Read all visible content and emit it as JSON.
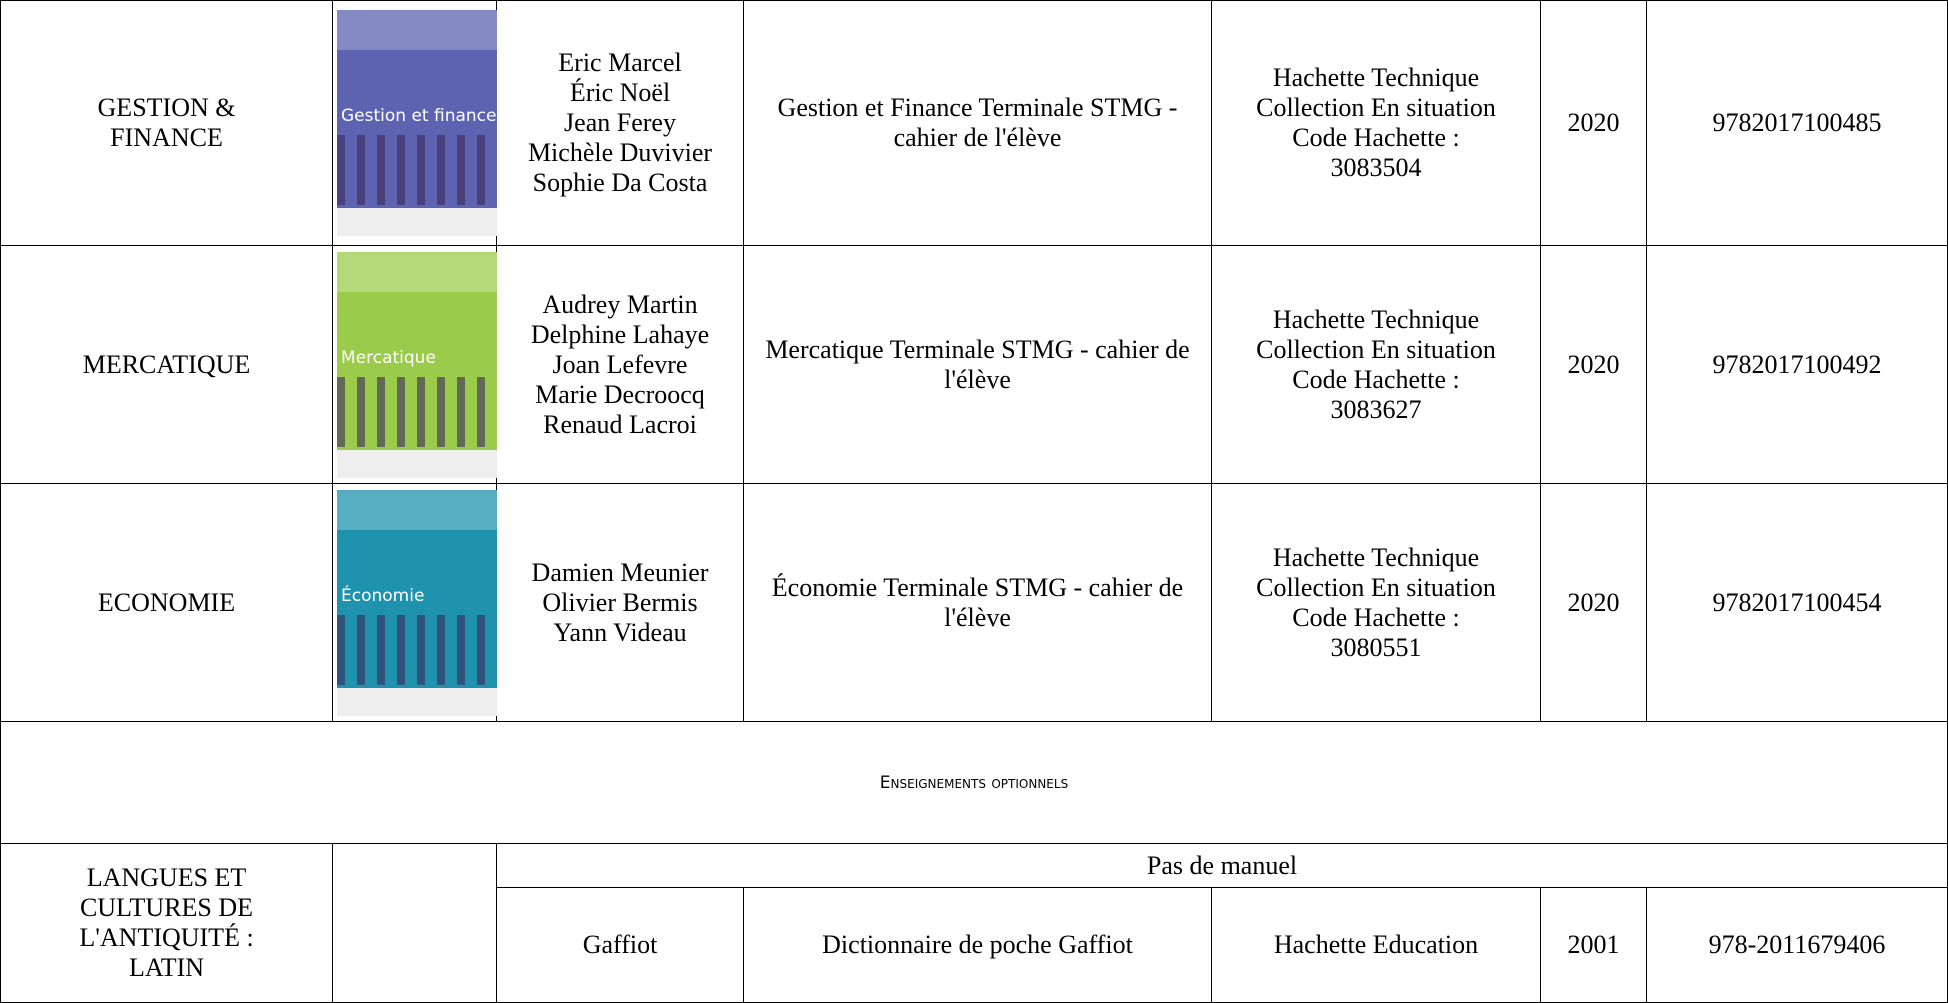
{
  "table": {
    "rows": [
      {
        "subject": "GESTION & FINANCE",
        "cover_title": "Gestion et finance",
        "authors": [
          "Eric Marcel",
          "Éric Noël",
          "Jean Ferey",
          "Michèle Duvivier",
          "Sophie Da Costa"
        ],
        "title": "Gestion et Finance Terminale STMG - cahier de l'élève",
        "publisher": [
          "Hachette Technique",
          "Collection En situation",
          "Code Hachette  :",
          "3083504"
        ],
        "year": 2020,
        "isbn": "9782017100485"
      },
      {
        "subject": "MERCATIQUE",
        "cover_title": "Mercatique",
        "authors": [
          "Audrey Martin",
          "Delphine Lahaye",
          "Joan Lefevre",
          "Marie Decroocq",
          "Renaud Lacroi"
        ],
        "title": "Mercatique Terminale STMG - cahier de l'élève",
        "publisher": [
          "Hachette Technique",
          "Collection En situation",
          "Code Hachette :",
          "3083627"
        ],
        "year": 2020,
        "isbn": "9782017100492"
      },
      {
        "subject": "ECONOMIE",
        "cover_title": "Économie",
        "authors": [
          "Damien Meunier",
          "Olivier Bermis",
          "Yann Videau"
        ],
        "title": "Économie Terminale STMG - cahier de l'élève",
        "publisher": [
          "Hachette Technique",
          "Collection En situation",
          "Code Hachette :",
          "3080551"
        ],
        "year": 2020,
        "isbn": "9782017100454"
      }
    ],
    "section": "Enseignements optionnels",
    "latin": {
      "subject": "LANGUES ET CULTURES DE L'ANTIQUITÉ : LATIN",
      "note": "Pas de manuel",
      "author": "Gaffiot",
      "title": "Dictionnaire de poche Gaffiot",
      "publisher": "Hachette Education",
      "year": 2001,
      "isbn": "978-2011679406"
    }
  }
}
